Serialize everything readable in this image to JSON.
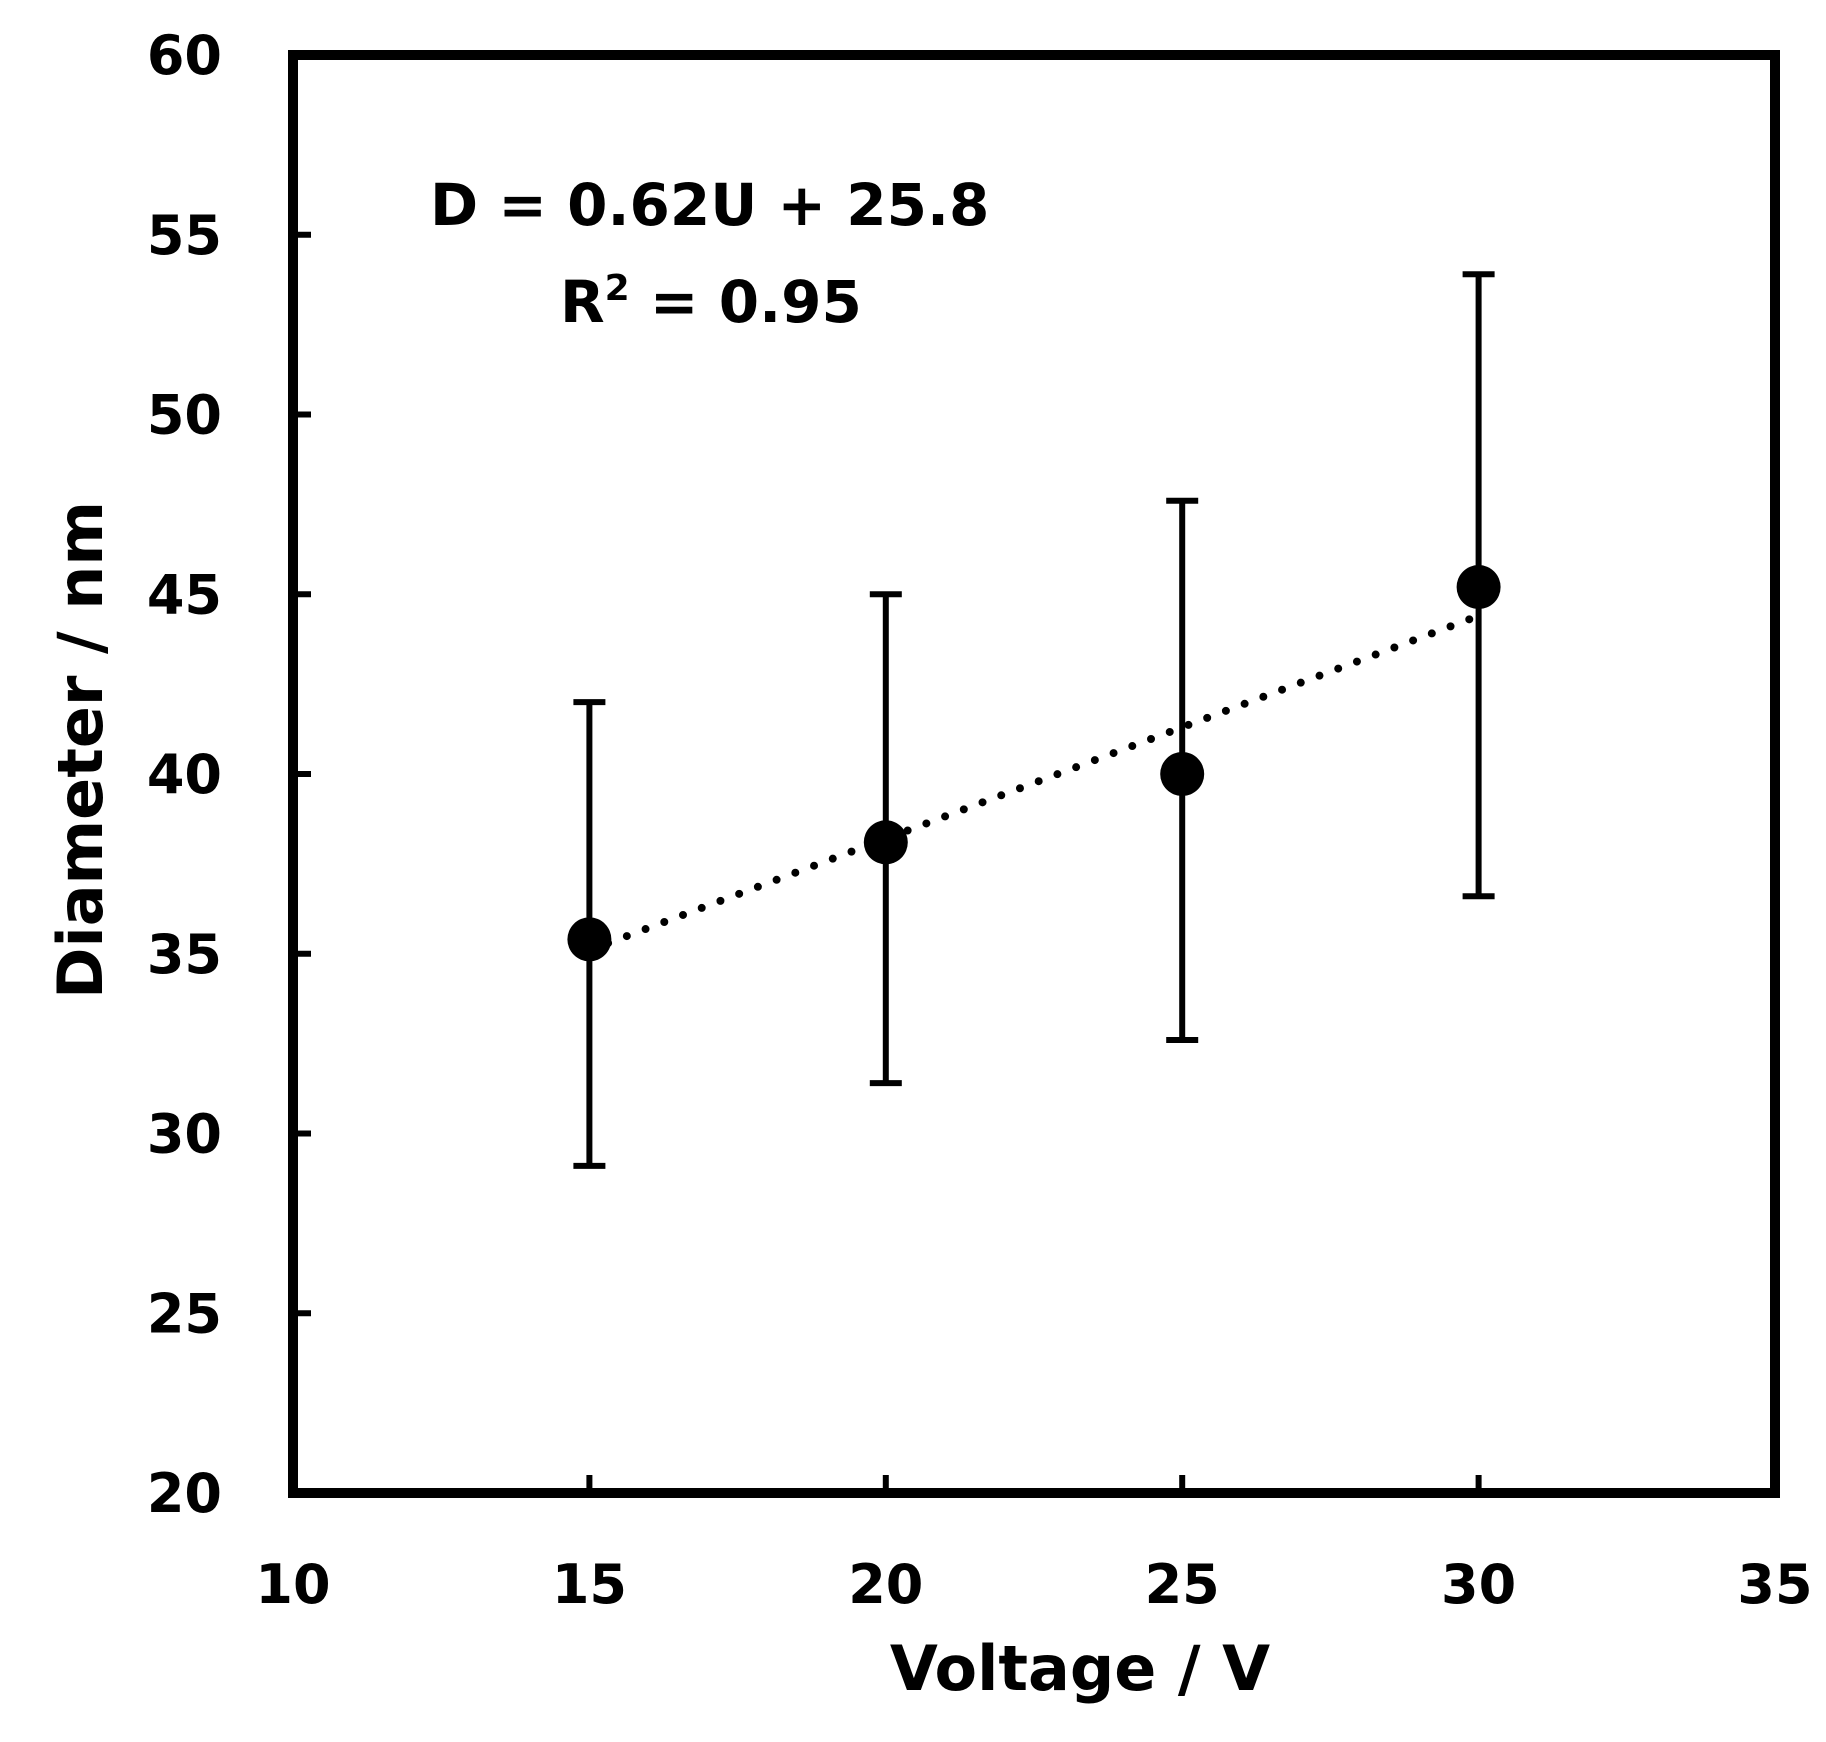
{
  "chart_data": {
    "type": "scatter",
    "xlabel": "Voltage / V",
    "ylabel": "Diameter / nm",
    "xlim": [
      10,
      35
    ],
    "ylim": [
      20,
      60
    ],
    "xticks": [
      "10",
      "15",
      "20",
      "25",
      "30",
      "35"
    ],
    "yticks": [
      "20",
      "25",
      "30",
      "35",
      "40",
      "45",
      "50",
      "55",
      "60"
    ],
    "grid": false,
    "points": [
      {
        "x": 15,
        "y": 35.4,
        "err_low": 29.1,
        "err_high": 42.0
      },
      {
        "x": 20,
        "y": 38.1,
        "err_low": 31.4,
        "err_high": 45.0
      },
      {
        "x": 25,
        "y": 40.0,
        "err_low": 32.6,
        "err_high": 47.6
      },
      {
        "x": 30,
        "y": 45.2,
        "err_low": 36.6,
        "err_high": 53.9
      }
    ],
    "trendline": {
      "type": "linear",
      "slope": 0.62,
      "intercept": 25.8,
      "x_range": [
        15,
        30
      ],
      "style": "dotted"
    },
    "annotations": {
      "equation": "D = 0.62U + 25.8",
      "r2_prefix": "R",
      "r2_sup": "2",
      "r2_value": " = 0.95"
    },
    "colors": {
      "marker": "#000000",
      "axis": "#000000"
    }
  }
}
